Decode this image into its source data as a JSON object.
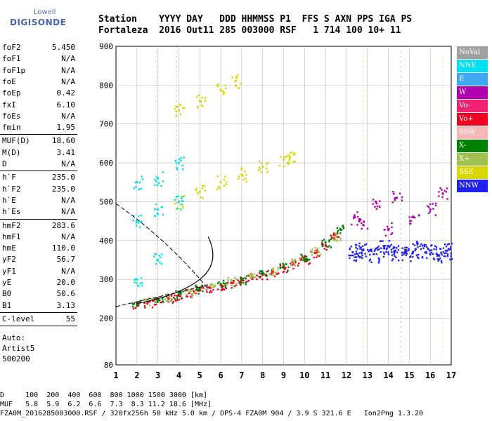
{
  "logo": {
    "line1": "Lowell",
    "line2": "DIGISONDE"
  },
  "header": {
    "line1": "Station    YYYY DAY   DDD HHMMSS P1  FFS S AXN PPS IGA PS",
    "line2": "Fortaleza  2016 Out11 285 003000 RSF   1 714 100 10+ 11"
  },
  "params": {
    "group1": [
      {
        "label": "foF2",
        "value": "5.450"
      },
      {
        "label": "foF1",
        "value": "N/A"
      },
      {
        "label": "foF1p",
        "value": "N/A"
      },
      {
        "label": "foE",
        "value": "N/A"
      },
      {
        "label": "foEp",
        "value": "0.42"
      },
      {
        "label": "fxI",
        "value": "6.10"
      },
      {
        "label": "foEs",
        "value": "N/A"
      },
      {
        "label": "fmin",
        "value": "1.95"
      }
    ],
    "group2": [
      {
        "label": "MUF(D)",
        "value": "18.60"
      },
      {
        "label": "M(D)",
        "value": "3.41"
      },
      {
        "label": "D",
        "value": "N/A"
      }
    ],
    "group3": [
      {
        "label": "h`F",
        "value": "235.0"
      },
      {
        "label": "h`F2",
        "value": "235.0"
      },
      {
        "label": "h`E",
        "value": "N/A"
      },
      {
        "label": "h`Es",
        "value": "N/A"
      }
    ],
    "group4": [
      {
        "label": "hmF2",
        "value": "283.6"
      },
      {
        "label": "hmF1",
        "value": "N/A"
      },
      {
        "label": "hmE",
        "value": "110.0"
      },
      {
        "label": "yF2",
        "value": "56.7"
      },
      {
        "label": "yF1",
        "value": "N/A"
      },
      {
        "label": "yE",
        "value": "20.0"
      },
      {
        "label": "B0",
        "value": "50.6"
      },
      {
        "label": "B1",
        "value": "3.13"
      }
    ],
    "group5": [
      {
        "label": "C-level",
        "value": "55"
      }
    ],
    "footer": [
      "Auto:",
      "Artist5",
      "500200"
    ]
  },
  "legend": [
    {
      "label": "NoVal",
      "color": "#a0a0a0"
    },
    {
      "label": "NNE",
      "color": "#00e0f0"
    },
    {
      "label": "E",
      "color": "#40a8f0"
    },
    {
      "label": "W",
      "color": "#b000b0"
    },
    {
      "label": "Vo-",
      "color": "#f02070"
    },
    {
      "label": "Vo+",
      "color": "#f00020"
    },
    {
      "label": "SSW",
      "color": "#f8b8b8"
    },
    {
      "label": "X-",
      "color": "#008000"
    },
    {
      "label": "X+",
      "color": "#a0c050"
    },
    {
      "label": "SSE",
      "color": "#d8d800"
    },
    {
      "label": "NNW",
      "color": "#2020f0"
    }
  ],
  "bottom": {
    "line1": "D     100  200  400  600  800 1000 1500 3000 [km]",
    "line2": "MUF   5.8  5.9  6.2  6.6  7.3  8.3 11.2 18.6 [MHz]",
    "line3": "FZA0M_2016285003000.RSF / 320fx256h 50 kHz 5.0 km / DPS-4 FZA0M 904 / 3.9 S 321.6 E   Ion2Png 1.3.20"
  },
  "chart_data": {
    "type": "scatter",
    "xlim": [
      1,
      17
    ],
    "ylim": [
      80,
      900
    ],
    "xticks": [
      "1",
      "2",
      "3",
      "4",
      "5",
      "6",
      "7",
      "8",
      "9",
      "10",
      "11",
      "12",
      "13",
      "14",
      "15",
      "16",
      "17"
    ],
    "yticks": [
      "200",
      "300",
      "400",
      "500",
      "600",
      "700",
      "800",
      "900"
    ],
    "ytick_values": [
      200,
      300,
      400,
      500,
      600,
      700,
      800,
      900
    ],
    "ytick_bottom_label": "80",
    "grid": true,
    "series": [
      {
        "name": "Vo+",
        "color": "#f00020",
        "x": [
          2.0,
          2.5,
          3.0,
          3.5,
          4.0,
          4.5,
          5.0,
          5.5,
          6.0,
          6.5,
          7.0,
          7.5,
          8.0,
          8.5,
          9.0,
          9.5,
          10.0,
          10.5,
          11.0,
          11.4
        ],
        "y": [
          235,
          240,
          246,
          252,
          258,
          265,
          272,
          278,
          285,
          291,
          297,
          304,
          312,
          320,
          330,
          340,
          352,
          368,
          388,
          415
        ]
      },
      {
        "name": "X-",
        "color": "#008000",
        "x": [
          2.0,
          3.0,
          4.0,
          5.0,
          6.0,
          7.0,
          8.0,
          9.0,
          10.0,
          11.0,
          11.7
        ],
        "y": [
          238,
          250,
          262,
          276,
          288,
          300,
          316,
          334,
          358,
          395,
          430
        ]
      },
      {
        "name": "X+",
        "color": "#a0c050",
        "x": [
          2.5,
          3.5,
          4.5,
          5.5,
          6.5,
          7.5,
          8.5,
          9.5,
          10.5,
          11.5
        ],
        "y": [
          243,
          256,
          269,
          283,
          296,
          308,
          324,
          346,
          374,
          410
        ]
      },
      {
        "name": "SSE",
        "color": "#d8d800",
        "x": [
          4.0,
          5.0,
          6.0,
          7.0,
          8.0,
          9.0,
          9.3,
          4.0,
          5.0,
          6.0,
          6.7
        ],
        "y": [
          500,
          526,
          550,
          570,
          590,
          608,
          615,
          735,
          760,
          788,
          810
        ]
      },
      {
        "name": "NNW",
        "color": "#2020f0",
        "x": [
          12.3,
          12.8,
          13.3,
          13.8,
          14.3,
          14.8,
          15.3,
          15.8,
          16.3,
          16.8
        ],
        "y": [
          370,
          375,
          365,
          380,
          372,
          368,
          378,
          370,
          366,
          374
        ]
      },
      {
        "name": "NNE",
        "color": "#00e0f0",
        "x": [
          2.0,
          2.0,
          3.0,
          3.0,
          4.0,
          4.0,
          2.0,
          3.0
        ],
        "y": [
          450,
          550,
          480,
          560,
          500,
          600,
          300,
          350
        ]
      },
      {
        "name": "W",
        "color": "#b000b0",
        "x": [
          12.4,
          12.8,
          13.4,
          14.0,
          14.4,
          15.2,
          16.0,
          16.6
        ],
        "y": [
          460,
          440,
          500,
          430,
          510,
          460,
          480,
          520
        ]
      }
    ]
  }
}
